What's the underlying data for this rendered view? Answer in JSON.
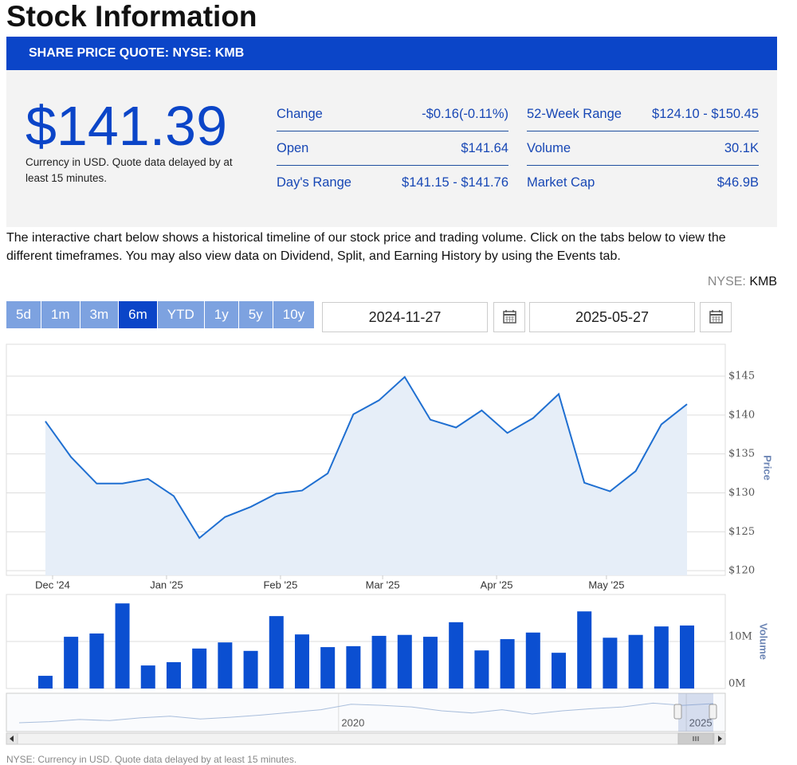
{
  "title": "Stock Information",
  "banner": "SHARE PRICE QUOTE: NYSE: KMB",
  "quote": {
    "price": "$141.39",
    "note": "Currency in USD. Quote data delayed by at least 15 minutes.",
    "stats": [
      [
        {
          "label": "Change",
          "value": "-$0.16(-0.11%)"
        },
        {
          "label": "Open",
          "value": "$141.64"
        },
        {
          "label": "Day's Range",
          "value": "$141.15 - $141.76"
        }
      ],
      [
        {
          "label": "52-Week Range",
          "value": "$124.10 - $150.45"
        },
        {
          "label": "Volume",
          "value": "30.1K"
        },
        {
          "label": "Market Cap",
          "value": "$46.9B"
        }
      ]
    ]
  },
  "description": "The interactive chart below shows a historical timeline of our stock price and trading volume. Click on the tabs below to view the different timeframes. You may also view data on Dividend, Split, and Earning History by using the Events tab.",
  "exchange_label": "NYSE:",
  "symbol": "KMB",
  "range_buttons": [
    "5d",
    "1m",
    "3m",
    "6m",
    "YTD",
    "1y",
    "5y",
    "10y"
  ],
  "active_range": "6m",
  "start_date": "2024-11-27",
  "end_date": "2025-05-27",
  "chart_data": [
    {
      "type": "area",
      "axis_label": "Price",
      "color": "#1f6fd1",
      "fill": "#e6eef8",
      "grid": true,
      "x": [
        0,
        1,
        2,
        3,
        4,
        5,
        6,
        7,
        8,
        9,
        10,
        11,
        12,
        13,
        14,
        15,
        16,
        17,
        18,
        19,
        20,
        21,
        22,
        23,
        24,
        25
      ],
      "values": [
        139.2,
        134.6,
        131.2,
        131.2,
        131.8,
        129.6,
        124.2,
        126.9,
        128.2,
        129.9,
        130.3,
        132.5,
        140.1,
        141.9,
        144.9,
        139.4,
        138.4,
        140.6,
        137.7,
        139.6,
        142.7,
        131.3,
        130.2,
        132.8,
        138.8,
        141.4
      ],
      "xlim": [
        -1.52,
        26.49
      ],
      "xticks": [
        {
          "value": 0.28,
          "label": "Dec '24"
        },
        {
          "value": 4.72,
          "label": "Jan '25"
        },
        {
          "value": 9.16,
          "label": "Feb '25"
        },
        {
          "value": 13.14,
          "label": "Mar '25"
        },
        {
          "value": 17.58,
          "label": "Apr '25"
        },
        {
          "value": 21.86,
          "label": "May '25"
        }
      ],
      "ylim": [
        119.4,
        149.1
      ],
      "yticks": [
        {
          "value": 120,
          "label": "$120"
        },
        {
          "value": 125,
          "label": "$125"
        },
        {
          "value": 130,
          "label": "$130"
        },
        {
          "value": 135,
          "label": "$135"
        },
        {
          "value": 140,
          "label": "$140"
        },
        {
          "value": 145,
          "label": "$145"
        }
      ]
    },
    {
      "type": "bar",
      "axis_label": "Volume",
      "color": "#0b4fd1",
      "grid": true,
      "x": [
        0,
        1,
        2,
        3,
        4,
        5,
        6,
        7,
        8,
        9,
        10,
        11,
        12,
        13,
        14,
        15,
        16,
        17,
        18,
        19,
        20,
        21,
        22,
        23,
        24,
        25
      ],
      "values": [
        2700000,
        11000000,
        11700000,
        18100000,
        4900000,
        5600000,
        8500000,
        9800000,
        8000000,
        15400000,
        11500000,
        8800000,
        9000000,
        11200000,
        11400000,
        11000000,
        14100000,
        8100000,
        10500000,
        11900000,
        7600000,
        16400000,
        10800000,
        11400000,
        13200000,
        13400000
      ],
      "xlim": [
        -1.52,
        26.49
      ],
      "ylim": [
        0,
        20000000
      ],
      "yticks": [
        {
          "value": 0,
          "label": "0M"
        },
        {
          "value": 10000000,
          "label": "10M"
        }
      ]
    },
    {
      "type": "line",
      "color": "#a9bedc",
      "x": [
        0,
        1,
        2,
        3,
        4,
        5,
        6,
        7,
        8,
        9,
        10,
        11,
        12,
        13,
        14,
        15,
        16,
        17,
        18,
        19,
        20,
        21,
        22,
        23
      ],
      "values": [
        106,
        108,
        112,
        110,
        115,
        118,
        113,
        116,
        120,
        125,
        130,
        140,
        138,
        135,
        128,
        124,
        130,
        122,
        128,
        132,
        135,
        142,
        138,
        141
      ],
      "xlim": [
        0,
        23
      ],
      "ylim": [
        90,
        160
      ],
      "xticks": [
        {
          "value": 11.06,
          "label": "2020"
        },
        {
          "value": 22.58,
          "label": "2025"
        }
      ]
    }
  ],
  "footer": "NYSE: Currency in USD. Quote data delayed by at least 15 minutes."
}
